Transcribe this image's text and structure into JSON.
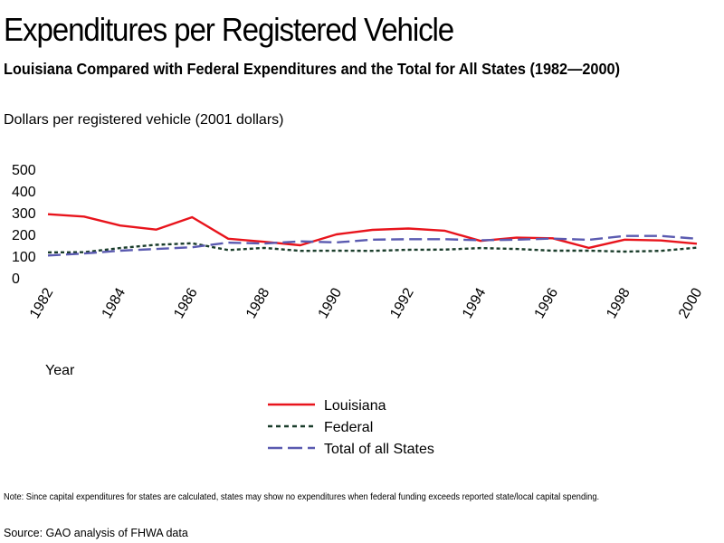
{
  "header": {
    "title": "Expenditures per Registered Vehicle",
    "subtitle": "Louisiana Compared with Federal Expenditures and the Total for All States (1982—2000)"
  },
  "footer": {
    "note": "Note:  Since capital expenditures for states are calculated, states may show no expenditures when federal funding exceeds reported state/local capital spending.",
    "source": "Source: GAO analysis of FHWA data"
  },
  "chart_data": {
    "type": "line",
    "title": "Expenditures per Registered Vehicle",
    "subtitle": "Louisiana Compared with Federal Expenditures and the Total for All States (1982—2000)",
    "xlabel": "Year",
    "ylabel": "Dollars per registered vehicle (2001 dollars)",
    "ylim": [
      0,
      500
    ],
    "xlim": [
      1982,
      2000
    ],
    "yticks": [
      0,
      100,
      200,
      300,
      400,
      500
    ],
    "xticks": [
      1982,
      1984,
      1986,
      1988,
      1990,
      1992,
      1994,
      1996,
      1998,
      2000
    ],
    "grid": false,
    "legend_position": "bottom-center",
    "x": [
      1982,
      1983,
      1984,
      1985,
      1986,
      1987,
      1988,
      1989,
      1990,
      1991,
      1992,
      1993,
      1994,
      1995,
      1996,
      1997,
      1998,
      1999,
      2000
    ],
    "series": [
      {
        "name": "Louisiana",
        "color": "#e8141c",
        "style": "solid",
        "values": [
          293,
          282,
          241,
          222,
          279,
          180,
          166,
          150,
          200,
          221,
          227,
          217,
          170,
          185,
          182,
          138,
          176,
          172,
          157
        ]
      },
      {
        "name": "Federal",
        "color": "#1a3d2b",
        "style": "dotted",
        "values": [
          117,
          118,
          137,
          152,
          159,
          128,
          138,
          124,
          125,
          124,
          129,
          130,
          137,
          133,
          125,
          125,
          121,
          124,
          139
        ]
      },
      {
        "name": "Total of all States",
        "color": "#5a5ab0",
        "style": "dashed",
        "values": [
          103,
          112,
          125,
          133,
          141,
          162,
          158,
          168,
          163,
          176,
          178,
          178,
          173,
          176,
          181,
          175,
          193,
          193,
          180
        ]
      }
    ]
  }
}
